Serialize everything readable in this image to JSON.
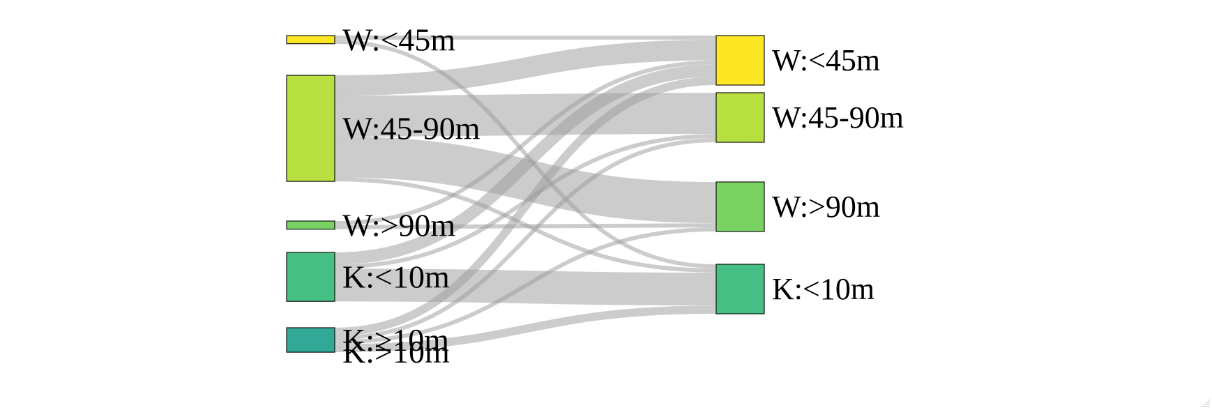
{
  "diagram": {
    "type": "sankey",
    "left_nodes": [
      {
        "id": "L_W_lt45",
        "label": "W:<45m",
        "color": "#fde725",
        "value": 2
      },
      {
        "id": "L_W_45_90",
        "label": "W:45-90m",
        "color": "#b8e040",
        "value": 26
      },
      {
        "id": "L_W_gt90",
        "label": "W:>90m",
        "color": "#7ad262",
        "value": 2
      },
      {
        "id": "L_K_lt10",
        "label": "K:<10m",
        "color": "#46bf85",
        "value": 12
      },
      {
        "id": "L_K_ge10",
        "label": "K:≥10m",
        "color": "#32a896",
        "value": 6,
        "overlap_label": "K:>10m"
      }
    ],
    "right_nodes": [
      {
        "id": "R_W_lt45",
        "label": "W:<45m",
        "color": "#fde725",
        "value": 12
      },
      {
        "id": "R_W_45_90",
        "label": "W:45-90m",
        "color": "#b8e040",
        "value": 12
      },
      {
        "id": "R_W_gt90",
        "label": "W:>90m",
        "color": "#7ad262",
        "value": 12
      },
      {
        "id": "R_K_lt10",
        "label": "K:<10m",
        "color": "#46bf85",
        "value": 12
      }
    ],
    "links": [
      {
        "source": "L_W_lt45",
        "target": "R_W_lt45",
        "value": 1
      },
      {
        "source": "L_W_lt45",
        "target": "R_K_lt10",
        "value": 1
      },
      {
        "source": "L_W_45_90",
        "target": "R_W_lt45",
        "value": 5
      },
      {
        "source": "L_W_45_90",
        "target": "R_W_45_90",
        "value": 10
      },
      {
        "source": "L_W_45_90",
        "target": "R_W_gt90",
        "value": 10
      },
      {
        "source": "L_W_45_90",
        "target": "R_K_lt10",
        "value": 1
      },
      {
        "source": "L_W_gt90",
        "target": "R_W_lt45",
        "value": 1
      },
      {
        "source": "L_W_gt90",
        "target": "R_W_gt90",
        "value": 1
      },
      {
        "source": "L_K_lt10",
        "target": "R_W_lt45",
        "value": 3
      },
      {
        "source": "L_K_lt10",
        "target": "R_W_45_90",
        "value": 1
      },
      {
        "source": "L_K_lt10",
        "target": "R_K_lt10",
        "value": 8
      },
      {
        "source": "L_K_ge10",
        "target": "R_W_lt45",
        "value": 2
      },
      {
        "source": "L_K_ge10",
        "target": "R_W_45_90",
        "value": 1
      },
      {
        "source": "L_K_ge10",
        "target": "R_W_gt90",
        "value": 1
      },
      {
        "source": "L_K_ge10",
        "target": "R_K_lt10",
        "value": 2
      }
    ]
  }
}
